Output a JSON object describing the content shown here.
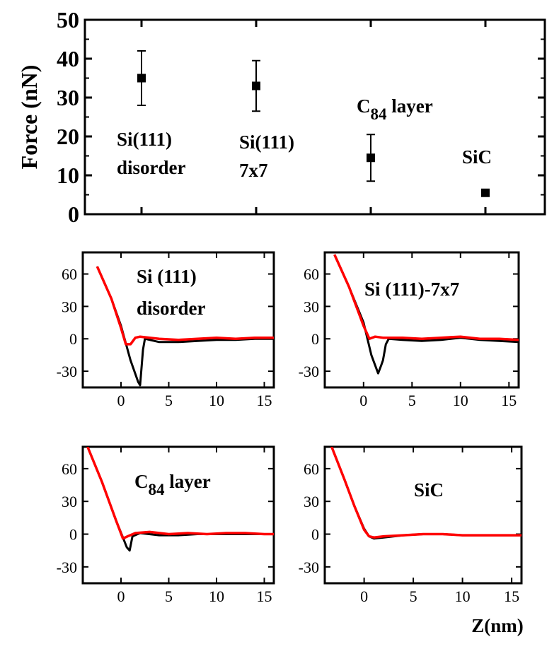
{
  "chart_data": [
    {
      "id": "summary",
      "type": "scatter",
      "ylabel": "Force (nN)",
      "xlabel": "",
      "ylim": [
        0,
        50
      ],
      "yticks": [
        0,
        10,
        20,
        30,
        40,
        50
      ],
      "grid": false,
      "points": [
        {
          "category": "Si(111) disorder",
          "label_lines": [
            "Si(111)",
            "disorder"
          ],
          "value": 35,
          "err_low": 28,
          "err_high": 42
        },
        {
          "category": "Si(111) 7x7",
          "label_lines": [
            "Si(111)",
            "7x7"
          ],
          "value": 33,
          "err_low": 26.5,
          "err_high": 39.5
        },
        {
          "category": "C84 layer",
          "label_main": "C",
          "label_sub": "84",
          "label_rest": " layer",
          "value": 14.5,
          "err_low": 8.5,
          "err_high": 20.5
        },
        {
          "category": "SiC",
          "label_lines": [
            "SiC"
          ],
          "value": 5.5,
          "err_low": 5,
          "err_high": 6
        }
      ]
    },
    {
      "id": "curve-si111-disorder",
      "type": "line",
      "xlabel": "",
      "ylabel": "",
      "xlim": [
        -4,
        16
      ],
      "ylim": [
        -45,
        80
      ],
      "xticks": [
        0,
        5,
        10,
        15
      ],
      "yticks": [
        60,
        30,
        0,
        -30
      ],
      "label_lines": [
        "Si (111)",
        "disorder"
      ],
      "series": [
        {
          "color": "#000000",
          "points": [
            [
              -2.5,
              67
            ],
            [
              -1.0,
              37
            ],
            [
              0.0,
              12
            ],
            [
              1.0,
              -20
            ],
            [
              1.8,
              -40
            ],
            [
              2.0,
              -43
            ],
            [
              2.3,
              -10
            ],
            [
              2.5,
              0
            ],
            [
              4,
              -3
            ],
            [
              6,
              -3
            ],
            [
              8,
              -2
            ],
            [
              10,
              -1
            ],
            [
              12,
              -1
            ],
            [
              14,
              0
            ],
            [
              16,
              0
            ]
          ]
        },
        {
          "color": "#ff0000",
          "points": [
            [
              -2.5,
              67
            ],
            [
              -1.0,
              37
            ],
            [
              0.0,
              10
            ],
            [
              0.5,
              -5
            ],
            [
              1.0,
              -5
            ],
            [
              1.5,
              1
            ],
            [
              2,
              2
            ],
            [
              4,
              0
            ],
            [
              6,
              -1
            ],
            [
              8,
              0
            ],
            [
              10,
              1
            ],
            [
              12,
              0
            ],
            [
              14,
              1
            ],
            [
              16,
              1
            ]
          ]
        }
      ]
    },
    {
      "id": "curve-si111-7x7",
      "type": "line",
      "xlabel": "",
      "ylabel": "",
      "xlim": [
        -4,
        16
      ],
      "ylim": [
        -45,
        80
      ],
      "xticks": [
        0,
        5,
        10,
        15
      ],
      "yticks": [
        60,
        30,
        0,
        -30
      ],
      "label_lines": [
        "Si (111)-7x7"
      ],
      "series": [
        {
          "color": "#000000",
          "points": [
            [
              -3,
              78
            ],
            [
              -1.5,
              48
            ],
            [
              0,
              15
            ],
            [
              0.8,
              -15
            ],
            [
              1.5,
              -32
            ],
            [
              1.8,
              -25
            ],
            [
              2.0,
              -20
            ],
            [
              2.3,
              -5
            ],
            [
              2.6,
              0
            ],
            [
              4,
              -1
            ],
            [
              6,
              -2
            ],
            [
              8,
              -1
            ],
            [
              10,
              1
            ],
            [
              12,
              -1
            ],
            [
              14,
              -2
            ],
            [
              16,
              -3
            ]
          ]
        },
        {
          "color": "#ff0000",
          "points": [
            [
              -3,
              78
            ],
            [
              -1.5,
              48
            ],
            [
              0,
              12
            ],
            [
              0.6,
              0
            ],
            [
              1.2,
              2
            ],
            [
              2,
              1
            ],
            [
              4,
              1
            ],
            [
              6,
              0
            ],
            [
              8,
              1
            ],
            [
              10,
              2
            ],
            [
              12,
              0
            ],
            [
              14,
              0
            ],
            [
              16,
              -1
            ]
          ]
        }
      ]
    },
    {
      "id": "curve-c84-layer",
      "type": "line",
      "xlabel": "",
      "ylabel": "",
      "xlim": [
        -4,
        16
      ],
      "ylim": [
        -45,
        80
      ],
      "xticks": [
        0,
        5,
        10,
        15
      ],
      "yticks": [
        60,
        30,
        0,
        -30
      ],
      "label_main": "C",
      "label_sub": "84",
      "label_rest": "  layer",
      "series": [
        {
          "color": "#000000",
          "points": [
            [
              -3.5,
              80
            ],
            [
              -2,
              48
            ],
            [
              -0.5,
              12
            ],
            [
              0.2,
              -3
            ],
            [
              0.6,
              -12
            ],
            [
              0.9,
              -15
            ],
            [
              1.2,
              -2
            ],
            [
              2,
              1
            ],
            [
              4,
              -1
            ],
            [
              6,
              -1
            ],
            [
              8,
              0
            ],
            [
              10,
              0
            ],
            [
              12,
              0
            ],
            [
              14,
              0
            ],
            [
              16,
              0
            ]
          ]
        },
        {
          "color": "#ff0000",
          "points": [
            [
              -3.5,
              80
            ],
            [
              -2,
              48
            ],
            [
              -0.5,
              12
            ],
            [
              0.2,
              -4
            ],
            [
              0.7,
              -2
            ],
            [
              1.5,
              1
            ],
            [
              3,
              2
            ],
            [
              5,
              0
            ],
            [
              7,
              1
            ],
            [
              9,
              0
            ],
            [
              11,
              1
            ],
            [
              13,
              1
            ],
            [
              15,
              0
            ],
            [
              16,
              0
            ]
          ]
        }
      ]
    },
    {
      "id": "curve-sic",
      "type": "line",
      "xlabel": "Z(nm)",
      "ylabel": "",
      "xlim": [
        -4,
        16
      ],
      "ylim": [
        -45,
        80
      ],
      "xticks": [
        0,
        5,
        10,
        15
      ],
      "yticks": [
        60,
        30,
        0,
        -30
      ],
      "label_lines": [
        "SiC"
      ],
      "series": [
        {
          "color": "#000000",
          "points": [
            [
              -3.3,
              80
            ],
            [
              -2,
              50
            ],
            [
              -1,
              26
            ],
            [
              0,
              5
            ],
            [
              0.5,
              -2
            ],
            [
              1,
              -4
            ],
            [
              2,
              -3
            ],
            [
              4,
              -1
            ],
            [
              6,
              0
            ],
            [
              8,
              0
            ],
            [
              10,
              -1
            ],
            [
              12,
              -1
            ],
            [
              14,
              -1
            ],
            [
              16,
              -1
            ]
          ]
        },
        {
          "color": "#ff0000",
          "points": [
            [
              -3.3,
              80
            ],
            [
              -2,
              50
            ],
            [
              -1,
              26
            ],
            [
              0,
              4
            ],
            [
              0.5,
              -2
            ],
            [
              1,
              -3
            ],
            [
              2,
              -2
            ],
            [
              4,
              -1
            ],
            [
              6,
              0
            ],
            [
              8,
              0
            ],
            [
              10,
              -1
            ],
            [
              12,
              -1
            ],
            [
              14,
              -1
            ],
            [
              16,
              -1
            ]
          ]
        }
      ]
    }
  ]
}
